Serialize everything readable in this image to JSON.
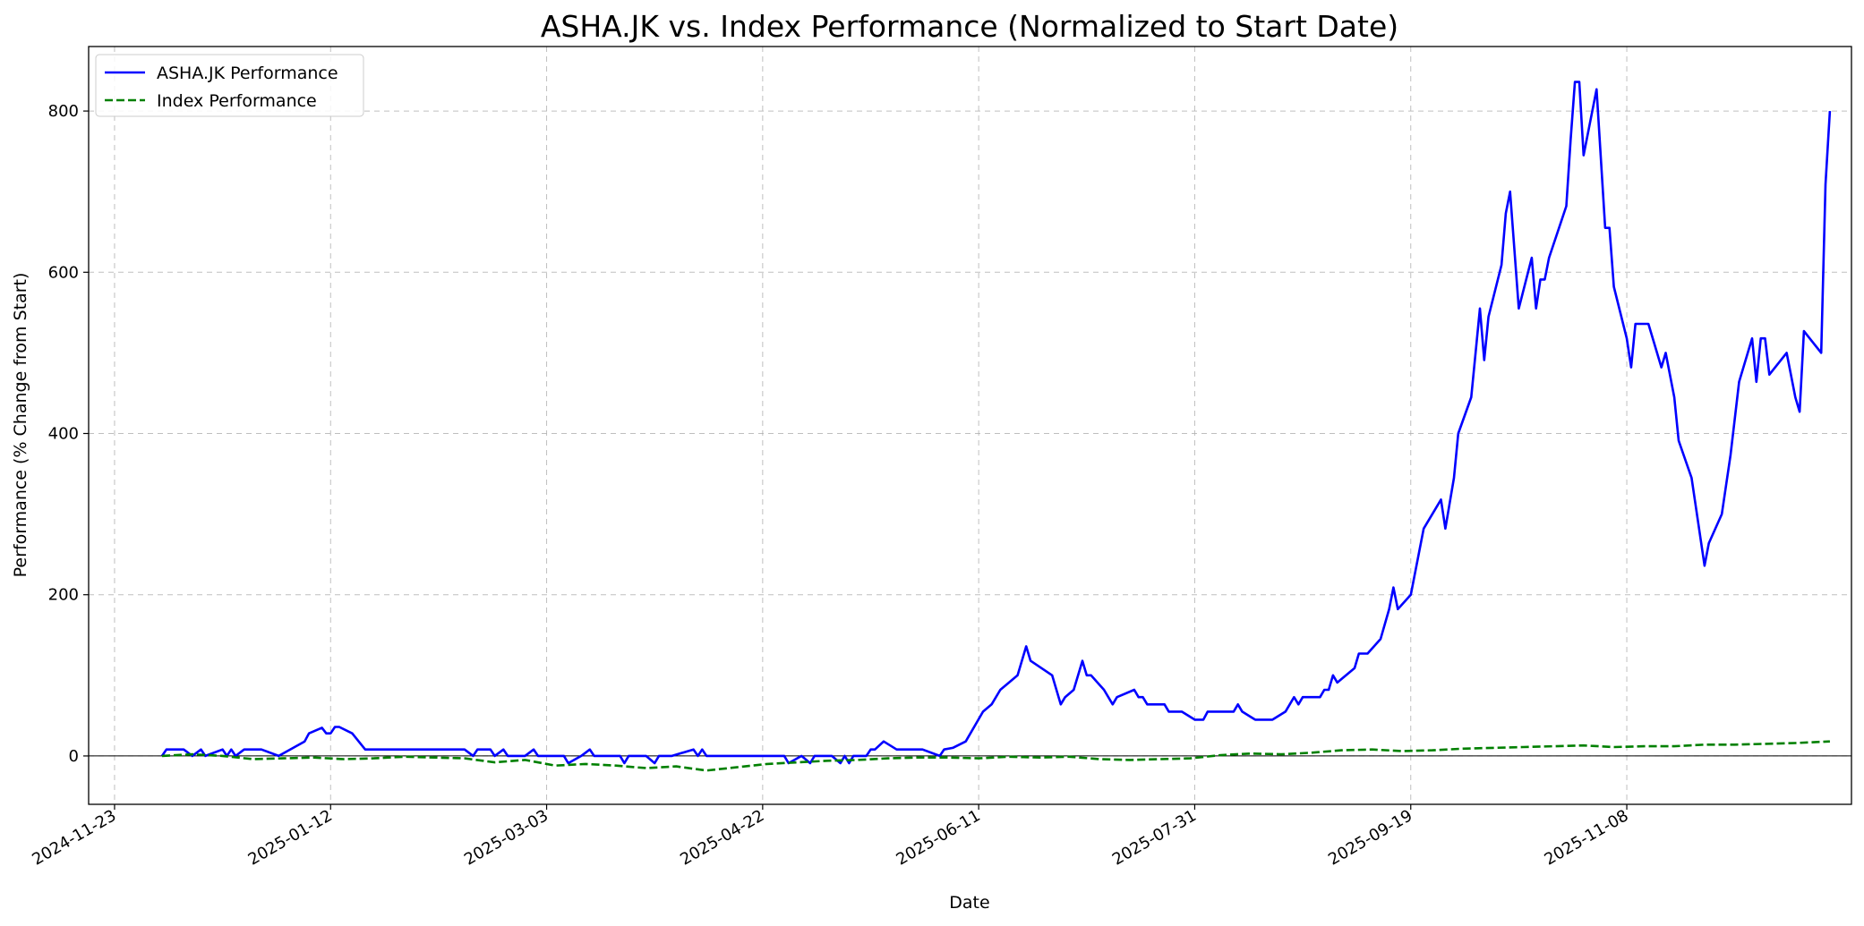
{
  "chart_data": {
    "type": "line",
    "title": "ASHA.JK vs. Index Performance (Normalized to Start Date)",
    "xlabel": "Date",
    "ylabel": "Performance (% Change from Start)",
    "xlim": [
      "2024-11-17",
      "2025-12-30"
    ],
    "ylim": [
      -60,
      880
    ],
    "x_ticks": [
      "2024-11-23",
      "2025-01-12",
      "2025-03-03",
      "2025-04-22",
      "2025-06-11",
      "2025-07-31",
      "2025-09-19",
      "2025-11-08"
    ],
    "y_ticks": [
      0,
      200,
      400,
      600,
      800
    ],
    "grid": true,
    "zero_line": true,
    "legend": {
      "position": "upper-left"
    },
    "series": [
      {
        "name": "ASHA.JK Performance",
        "color": "#0000ff",
        "style": "solid",
        "points": [
          [
            "2024-12-04",
            0
          ],
          [
            "2024-12-05",
            8
          ],
          [
            "2024-12-09",
            8
          ],
          [
            "2024-12-11",
            0
          ],
          [
            "2024-12-13",
            8
          ],
          [
            "2024-12-14",
            0
          ],
          [
            "2024-12-18",
            8
          ],
          [
            "2024-12-19",
            0
          ],
          [
            "2024-12-20",
            8
          ],
          [
            "2024-12-21",
            0
          ],
          [
            "2024-12-23",
            8
          ],
          [
            "2024-12-27",
            8
          ],
          [
            "2024-12-31",
            0
          ],
          [
            "2025-01-06",
            18
          ],
          [
            "2025-01-07",
            28
          ],
          [
            "2025-01-10",
            35
          ],
          [
            "2025-01-11",
            28
          ],
          [
            "2025-01-12",
            28
          ],
          [
            "2025-01-13",
            36
          ],
          [
            "2025-01-14",
            36
          ],
          [
            "2025-01-17",
            28
          ],
          [
            "2025-01-20",
            8
          ],
          [
            "2025-02-12",
            8
          ],
          [
            "2025-02-14",
            0
          ],
          [
            "2025-02-15",
            8
          ],
          [
            "2025-02-18",
            8
          ],
          [
            "2025-02-19",
            0
          ],
          [
            "2025-02-21",
            8
          ],
          [
            "2025-02-22",
            0
          ],
          [
            "2025-02-26",
            0
          ],
          [
            "2025-02-28",
            8
          ],
          [
            "2025-03-01",
            0
          ],
          [
            "2025-03-07",
            0
          ],
          [
            "2025-03-08",
            -9
          ],
          [
            "2025-03-11",
            0
          ],
          [
            "2025-03-13",
            8
          ],
          [
            "2025-03-14",
            0
          ],
          [
            "2025-03-20",
            0
          ],
          [
            "2025-03-21",
            -9
          ],
          [
            "2025-03-22",
            0
          ],
          [
            "2025-03-26",
            0
          ],
          [
            "2025-03-28",
            -9
          ],
          [
            "2025-03-29",
            0
          ],
          [
            "2025-04-01",
            0
          ],
          [
            "2025-04-06",
            8
          ],
          [
            "2025-04-07",
            0
          ],
          [
            "2025-04-08",
            8
          ],
          [
            "2025-04-09",
            0
          ],
          [
            "2025-04-27",
            0
          ],
          [
            "2025-04-28",
            -9
          ],
          [
            "2025-05-01",
            0
          ],
          [
            "2025-05-03",
            -9
          ],
          [
            "2025-05-04",
            0
          ],
          [
            "2025-05-08",
            0
          ],
          [
            "2025-05-10",
            -9
          ],
          [
            "2025-05-11",
            0
          ],
          [
            "2025-05-12",
            -9
          ],
          [
            "2025-05-13",
            0
          ],
          [
            "2025-05-16",
            0
          ],
          [
            "2025-05-17",
            8
          ],
          [
            "2025-05-18",
            8
          ],
          [
            "2025-05-20",
            18
          ],
          [
            "2025-05-23",
            8
          ],
          [
            "2025-05-29",
            8
          ],
          [
            "2025-06-02",
            0
          ],
          [
            "2025-06-03",
            8
          ],
          [
            "2025-06-05",
            10
          ],
          [
            "2025-06-08",
            18
          ],
          [
            "2025-06-12",
            55
          ],
          [
            "2025-06-14",
            64
          ],
          [
            "2025-06-16",
            82
          ],
          [
            "2025-06-20",
            100
          ],
          [
            "2025-06-22",
            136
          ],
          [
            "2025-06-23",
            118
          ],
          [
            "2025-06-28",
            100
          ],
          [
            "2025-06-30",
            64
          ],
          [
            "2025-07-01",
            73
          ],
          [
            "2025-07-03",
            82
          ],
          [
            "2025-07-05",
            118
          ],
          [
            "2025-07-06",
            100
          ],
          [
            "2025-07-07",
            100
          ],
          [
            "2025-07-10",
            82
          ],
          [
            "2025-07-12",
            64
          ],
          [
            "2025-07-13",
            73
          ],
          [
            "2025-07-17",
            82
          ],
          [
            "2025-07-18",
            73
          ],
          [
            "2025-07-19",
            73
          ],
          [
            "2025-07-20",
            64
          ],
          [
            "2025-07-24",
            64
          ],
          [
            "2025-07-25",
            55
          ],
          [
            "2025-07-28",
            55
          ],
          [
            "2025-07-31",
            45
          ],
          [
            "2025-08-02",
            45
          ],
          [
            "2025-08-03",
            55
          ],
          [
            "2025-08-09",
            55
          ],
          [
            "2025-08-10",
            64
          ],
          [
            "2025-08-11",
            55
          ],
          [
            "2025-08-14",
            45
          ],
          [
            "2025-08-18",
            45
          ],
          [
            "2025-08-21",
            55
          ],
          [
            "2025-08-23",
            73
          ],
          [
            "2025-08-24",
            64
          ],
          [
            "2025-08-25",
            73
          ],
          [
            "2025-08-29",
            73
          ],
          [
            "2025-08-30",
            82
          ],
          [
            "2025-08-31",
            82
          ],
          [
            "2025-09-01",
            100
          ],
          [
            "2025-09-02",
            91
          ],
          [
            "2025-09-06",
            109
          ],
          [
            "2025-09-07",
            127
          ],
          [
            "2025-09-09",
            127
          ],
          [
            "2025-09-12",
            145
          ],
          [
            "2025-09-14",
            182
          ],
          [
            "2025-09-15",
            209
          ],
          [
            "2025-09-16",
            182
          ],
          [
            "2025-09-19",
            200
          ],
          [
            "2025-09-22",
            282
          ],
          [
            "2025-09-26",
            318
          ],
          [
            "2025-09-27",
            282
          ],
          [
            "2025-09-29",
            345
          ],
          [
            "2025-09-30",
            400
          ],
          [
            "2025-10-03",
            445
          ],
          [
            "2025-10-05",
            555
          ],
          [
            "2025-10-06",
            491
          ],
          [
            "2025-10-07",
            545
          ],
          [
            "2025-10-10",
            609
          ],
          [
            "2025-10-11",
            673
          ],
          [
            "2025-10-12",
            700
          ],
          [
            "2025-10-14",
            555
          ],
          [
            "2025-10-17",
            618
          ],
          [
            "2025-10-18",
            555
          ],
          [
            "2025-10-19",
            591
          ],
          [
            "2025-10-20",
            591
          ],
          [
            "2025-10-21",
            618
          ],
          [
            "2025-10-25",
            682
          ],
          [
            "2025-10-26",
            764
          ],
          [
            "2025-10-27",
            836
          ],
          [
            "2025-10-28",
            836
          ],
          [
            "2025-10-29",
            745
          ],
          [
            "2025-11-01",
            827
          ],
          [
            "2025-11-03",
            655
          ],
          [
            "2025-11-04",
            655
          ],
          [
            "2025-11-05",
            582
          ],
          [
            "2025-11-08",
            518
          ],
          [
            "2025-11-09",
            482
          ],
          [
            "2025-11-10",
            536
          ],
          [
            "2025-11-13",
            536
          ],
          [
            "2025-11-16",
            482
          ],
          [
            "2025-11-17",
            500
          ],
          [
            "2025-11-19",
            445
          ],
          [
            "2025-11-20",
            391
          ],
          [
            "2025-11-23",
            345
          ],
          [
            "2025-11-26",
            236
          ],
          [
            "2025-11-27",
            264
          ],
          [
            "2025-11-30",
            300
          ],
          [
            "2025-12-02",
            373
          ],
          [
            "2025-12-04",
            464
          ],
          [
            "2025-12-07",
            518
          ],
          [
            "2025-12-08",
            464
          ],
          [
            "2025-12-09",
            518
          ],
          [
            "2025-12-10",
            518
          ],
          [
            "2025-12-11",
            473
          ],
          [
            "2025-12-15",
            500
          ],
          [
            "2025-12-17",
            445
          ],
          [
            "2025-12-18",
            427
          ],
          [
            "2025-12-19",
            527
          ],
          [
            "2025-12-23",
            500
          ],
          [
            "2025-12-24",
            709
          ],
          [
            "2025-12-25",
            800
          ]
        ]
      },
      {
        "name": "Index Performance",
        "color": "#008000",
        "style": "dashed",
        "points": [
          [
            "2024-12-04",
            0
          ],
          [
            "2024-12-11",
            2
          ],
          [
            "2024-12-18",
            0
          ],
          [
            "2024-12-25",
            -4
          ],
          [
            "2025-01-01",
            -3
          ],
          [
            "2025-01-08",
            -2
          ],
          [
            "2025-01-15",
            -4
          ],
          [
            "2025-01-22",
            -3
          ],
          [
            "2025-01-29",
            -1
          ],
          [
            "2025-02-05",
            -2
          ],
          [
            "2025-02-12",
            -3
          ],
          [
            "2025-02-19",
            -8
          ],
          [
            "2025-02-26",
            -5
          ],
          [
            "2025-03-05",
            -12
          ],
          [
            "2025-03-12",
            -10
          ],
          [
            "2025-03-19",
            -12
          ],
          [
            "2025-03-26",
            -15
          ],
          [
            "2025-04-02",
            -13
          ],
          [
            "2025-04-09",
            -18
          ],
          [
            "2025-04-16",
            -14
          ],
          [
            "2025-04-23",
            -10
          ],
          [
            "2025-04-30",
            -8
          ],
          [
            "2025-05-07",
            -6
          ],
          [
            "2025-05-14",
            -5
          ],
          [
            "2025-05-21",
            -3
          ],
          [
            "2025-05-28",
            -2
          ],
          [
            "2025-06-04",
            -2
          ],
          [
            "2025-06-11",
            -3
          ],
          [
            "2025-06-18",
            -1
          ],
          [
            "2025-06-25",
            -2
          ],
          [
            "2025-07-02",
            -1
          ],
          [
            "2025-07-09",
            -4
          ],
          [
            "2025-07-16",
            -5
          ],
          [
            "2025-07-23",
            -4
          ],
          [
            "2025-07-30",
            -3
          ],
          [
            "2025-08-06",
            1
          ],
          [
            "2025-08-13",
            3
          ],
          [
            "2025-08-20",
            2
          ],
          [
            "2025-08-27",
            4
          ],
          [
            "2025-09-03",
            7
          ],
          [
            "2025-09-10",
            8
          ],
          [
            "2025-09-17",
            6
          ],
          [
            "2025-09-24",
            7
          ],
          [
            "2025-10-01",
            9
          ],
          [
            "2025-10-08",
            10
          ],
          [
            "2025-10-15",
            11
          ],
          [
            "2025-10-22",
            12
          ],
          [
            "2025-10-29",
            13
          ],
          [
            "2025-11-05",
            11
          ],
          [
            "2025-11-12",
            12
          ],
          [
            "2025-11-19",
            12
          ],
          [
            "2025-11-26",
            14
          ],
          [
            "2025-12-03",
            14
          ],
          [
            "2025-12-10",
            15
          ],
          [
            "2025-12-17",
            16
          ],
          [
            "2025-12-25",
            18
          ]
        ]
      }
    ]
  }
}
